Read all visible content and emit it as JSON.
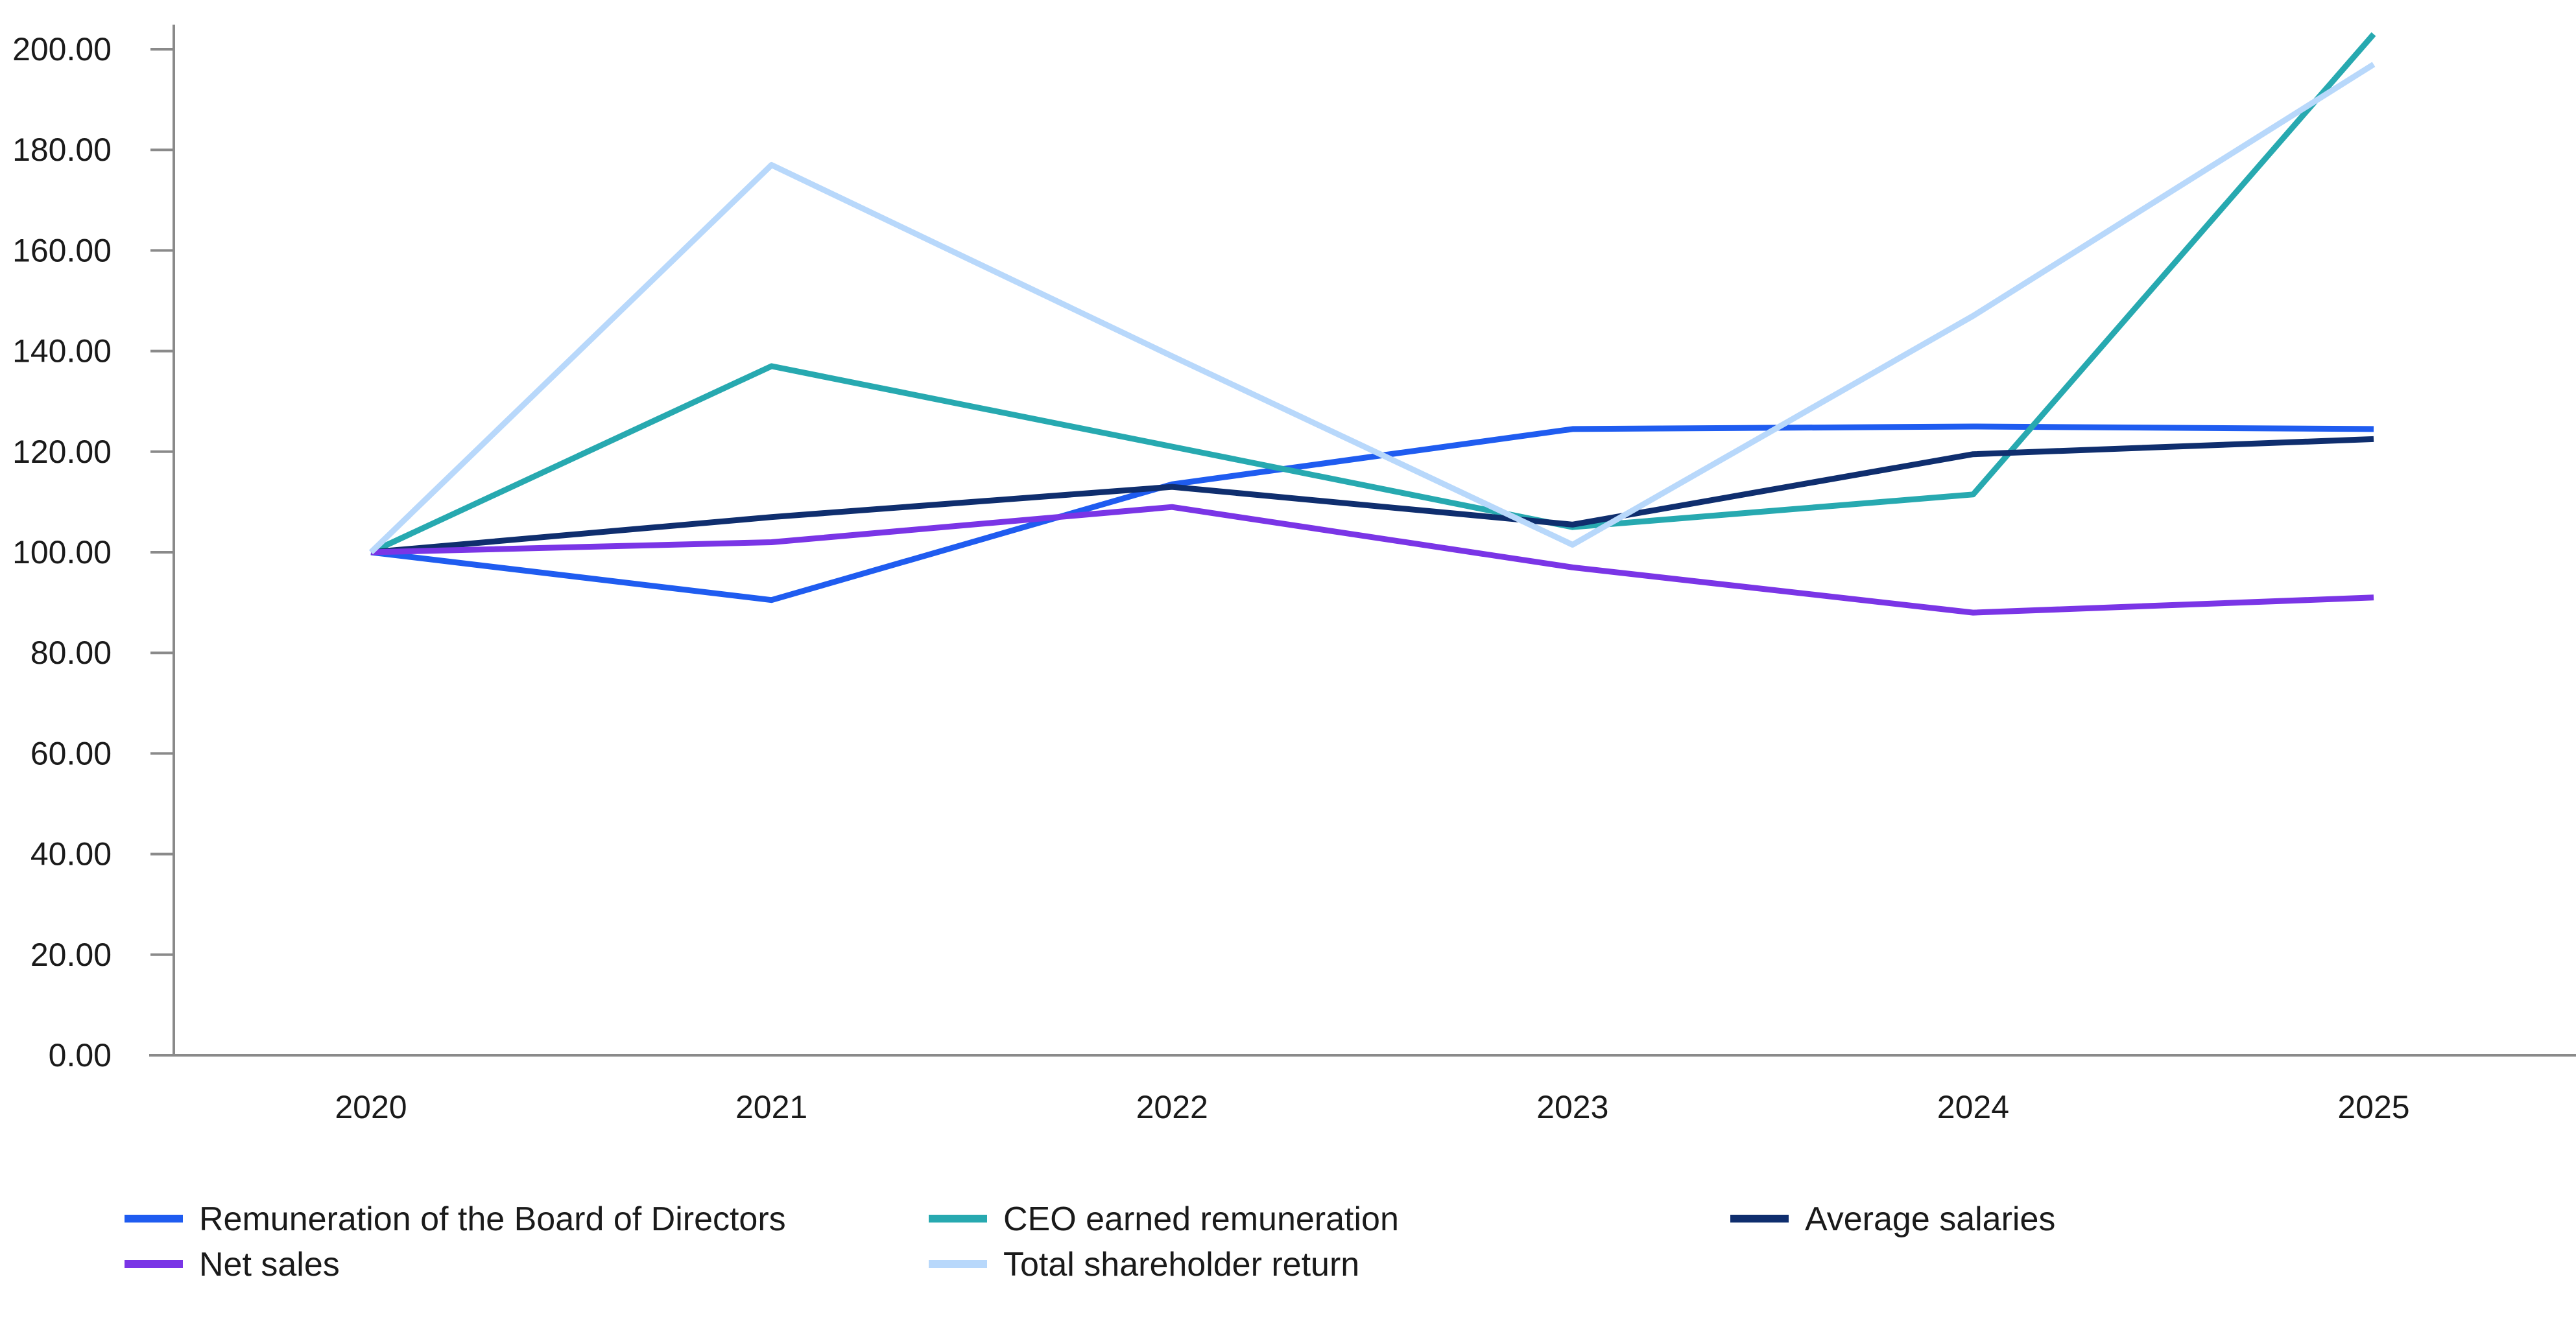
{
  "chart_data": {
    "type": "line",
    "title": "",
    "xlabel": "",
    "ylabel": "",
    "x": [
      "2020",
      "2021",
      "2022",
      "2023",
      "2024",
      "2025"
    ],
    "ylim": [
      0,
      205
    ],
    "yticks": [
      "0.00",
      "20.00",
      "40.00",
      "60.00",
      "80.00",
      "100.00",
      "120.00",
      "140.00",
      "160.00",
      "180.00",
      "200.00"
    ],
    "grid": false,
    "legend_position": "bottom",
    "series": [
      {
        "name": "Remuneration of the Board of Directors",
        "color": "#1f5cf0",
        "values": [
          100,
          90.5,
          113.5,
          124.5,
          125,
          124.5
        ]
      },
      {
        "name": "CEO earned remuneration",
        "color": "#27a9b0",
        "values": [
          100,
          137,
          121,
          105,
          111.5,
          203
        ]
      },
      {
        "name": "Average salaries",
        "color": "#0f2e6e",
        "values": [
          100,
          107,
          113,
          105.5,
          119.5,
          122.5
        ]
      },
      {
        "name": "Net sales",
        "color": "#7a35e6",
        "values": [
          100,
          102,
          109,
          97,
          88,
          91
        ]
      },
      {
        "name": "Total shareholder return",
        "color": "#b8d8fb",
        "values": [
          100,
          177,
          139,
          101.5,
          147,
          197
        ]
      }
    ]
  }
}
